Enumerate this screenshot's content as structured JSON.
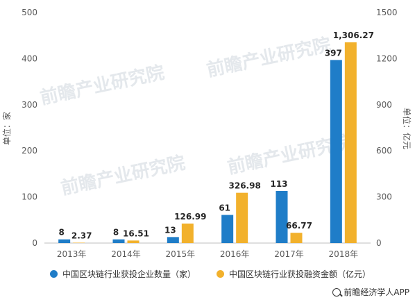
{
  "chart_data": {
    "type": "bar",
    "categories": [
      "2013年",
      "2014年",
      "2015年",
      "2016年",
      "2017年",
      "2018年"
    ],
    "series": [
      {
        "name": "中国区块链行业获投企业数量（家）",
        "axis": "left",
        "color": "#1f7dc8",
        "values": [
          8,
          8,
          13,
          61,
          113,
          397
        ],
        "labels": [
          "8",
          "8",
          "13",
          "61",
          "113",
          "397"
        ]
      },
      {
        "name": "中国区块链行业获投融资金额（亿元）",
        "axis": "right",
        "color": "#f2b12c",
        "values": [
          2.37,
          16.51,
          126.99,
          326.98,
          66.77,
          1306.27
        ],
        "labels": [
          "2.37",
          "16.51",
          "126.99",
          "326.98",
          "66.77",
          "1,306.27"
        ]
      }
    ],
    "ylabel_left": "单位：家",
    "ylabel_right": "单位：亿元",
    "ylim_left": [
      0,
      500
    ],
    "yticks_left": [
      0,
      100,
      200,
      300,
      400,
      500
    ],
    "ylim_right": [
      0,
      1500
    ],
    "yticks_right": [
      0,
      300,
      600,
      900,
      1200,
      1500
    ],
    "grid": false,
    "legend_position": "bottom"
  },
  "source": "前瞻经济学人APP",
  "watermark": "前瞻产业研究院"
}
